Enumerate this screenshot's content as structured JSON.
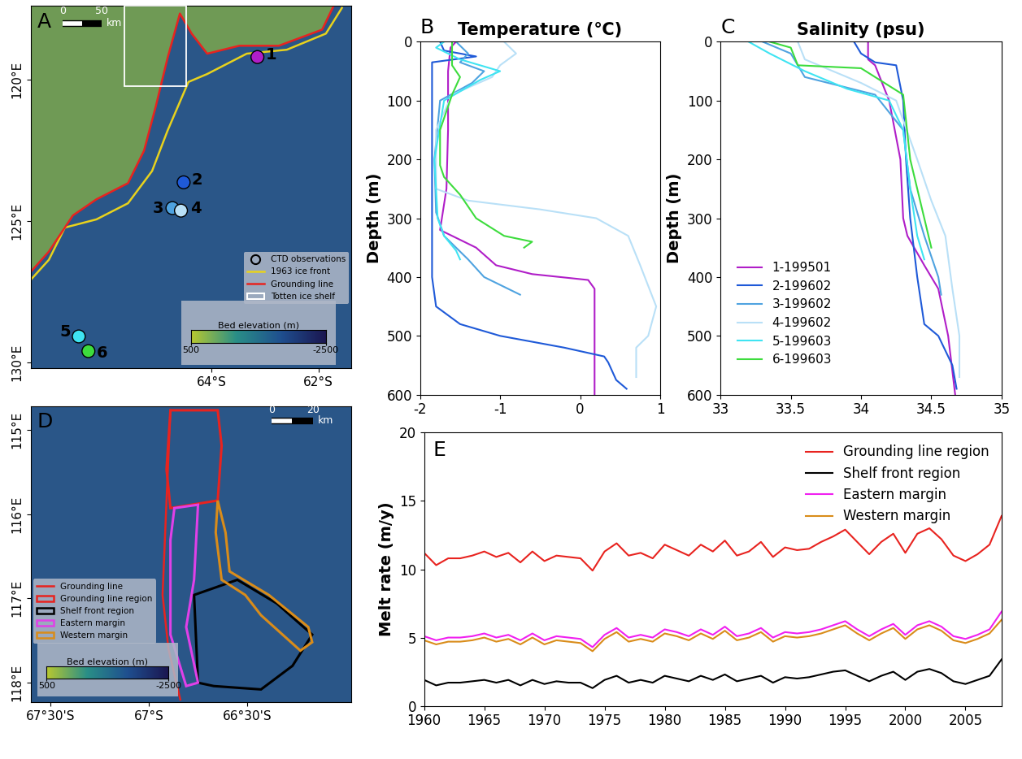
{
  "chart_data": [
    {
      "type": "map",
      "panel_label": "A",
      "xlim": [
        -67.38,
        -61.38
      ],
      "xticks": [
        {
          "value": -64,
          "label": "64°S"
        },
        {
          "value": -62,
          "label": "62°S"
        }
      ],
      "ylim": [
        130.2,
        117.37
      ],
      "yticks": [
        {
          "value": 120,
          "label": "120°E"
        },
        {
          "value": 125,
          "label": "125°E"
        },
        {
          "value": 130,
          "label": "130°E"
        }
      ],
      "legend": "lower right",
      "series": [
        {
          "name": "CTD observations",
          "type": "scatter",
          "marker": "circle",
          "x": [
            -63.14,
            -64.52,
            -64.73,
            -64.57,
            -66.48,
            -66.3
          ],
          "y": [
            119.2,
            123.63,
            124.54,
            124.63,
            129.08,
            129.6
          ],
          "colors": [
            "#b01ec8",
            "#1f5ad8",
            "#4fa3e0",
            "#b9e0f7",
            "#3fe4f2",
            "#3ddc3d"
          ],
          "point_labels": [
            "1",
            "2",
            "3",
            "4",
            "5",
            "6"
          ]
        },
        {
          "name": "1963 ice front",
          "type": "line",
          "color": "#e8d21d",
          "line_style": "solid",
          "x": [
            -61.56,
            -61.86,
            -62.59,
            -63.34,
            -64.08,
            -64.43,
            -64.82,
            -65.11,
            -65.56,
            -66.15,
            -66.74,
            -67.04,
            -67.38
          ],
          "y": [
            117.46,
            118.37,
            118.94,
            119.08,
            119.8,
            120.08,
            121.8,
            123.23,
            124.37,
            124.94,
            125.23,
            126.37,
            127.08
          ]
        },
        {
          "name": "Grounding line",
          "type": "line",
          "color": "#e8231f",
          "line_style": "solid",
          "x": [
            -61.71,
            -61.93,
            -62.74,
            -63.48,
            -64.08,
            -64.37,
            -64.59,
            -64.82,
            -65.04,
            -65.26,
            -65.56,
            -66.15,
            -66.59,
            -67.04,
            -67.38
          ],
          "y": [
            117.37,
            118.23,
            118.8,
            118.8,
            119.08,
            118.37,
            117.66,
            119.23,
            120.94,
            122.51,
            123.66,
            124.23,
            124.8,
            126.08,
            126.8
          ]
        },
        {
          "name": "Totten ice shelf",
          "type": "box",
          "color": "#ffffff",
          "x": [
            -65.63,
            -64.47
          ],
          "y": [
            117.37,
            120.23
          ]
        }
      ],
      "colorbar": {
        "label": "Bed elevation (m)",
        "range": [
          500,
          -2500
        ],
        "ticks": [
          500,
          -2500
        ]
      },
      "scale_bar": {
        "ticks": [
          0,
          50
        ],
        "unit": "km"
      }
    },
    {
      "type": "line",
      "panel_label": "B",
      "title": "Temperature (℃)",
      "ylabel": "Depth (m)",
      "xlim": [
        -2,
        1
      ],
      "xticks": [
        -2,
        -1,
        0,
        1
      ],
      "ylim": [
        600,
        0
      ],
      "yticks": [
        0,
        100,
        200,
        300,
        400,
        500,
        600
      ],
      "series": [
        {
          "color": "#b01ec8",
          "x": [
            -1.55,
            -1.62,
            -1.65,
            -1.65,
            -1.67,
            -1.75,
            -1.6,
            -1.3,
            -1.05,
            -0.6,
            0.1,
            0.18,
            0.18
          ],
          "y": [
            0,
            10,
            50,
            150,
            250,
            320,
            330,
            350,
            380,
            395,
            405,
            420,
            600
          ]
        },
        {
          "color": "#1f5ad8",
          "x": [
            -1.75,
            -1.7,
            -1.3,
            -1.85,
            -1.85,
            -1.85,
            -1.85,
            -1.8,
            -1.5,
            -1.0,
            -0.2,
            0.3,
            0.35,
            0.4,
            0.45,
            0.58
          ],
          "y": [
            0,
            15,
            25,
            35,
            100,
            300,
            400,
            450,
            480,
            500,
            520,
            535,
            545,
            560,
            575,
            590
          ]
        },
        {
          "color": "#4fa3e0",
          "x": [
            -1.55,
            -1.4,
            -1.5,
            -1.2,
            -1.35,
            -1.75,
            -1.82,
            -1.8,
            -1.7,
            -1.4,
            -1.2,
            -0.9,
            -0.75
          ],
          "y": [
            0,
            20,
            35,
            50,
            70,
            100,
            200,
            290,
            330,
            370,
            400,
            420,
            430
          ]
        },
        {
          "color": "#b9e0f7",
          "x": [
            -0.95,
            -0.8,
            -1.0,
            -1.1,
            -1.6,
            -1.8,
            -1.8,
            -1.4,
            -0.5,
            0.2,
            0.6,
            0.75,
            0.95,
            0.85,
            0.7,
            0.7
          ],
          "y": [
            0,
            20,
            40,
            60,
            90,
            150,
            250,
            270,
            285,
            300,
            330,
            380,
            450,
            500,
            520,
            570
          ]
        },
        {
          "color": "#3fe4f2",
          "x": [
            -1.7,
            -1.8,
            -1.5,
            -1.0,
            -1.25,
            -1.7,
            -1.82,
            -1.78,
            -1.7,
            -1.55,
            -1.5
          ],
          "y": [
            0,
            10,
            30,
            50,
            65,
            100,
            200,
            300,
            330,
            355,
            370
          ]
        },
        {
          "color": "#3ddc3d",
          "x": [
            -1.6,
            -1.6,
            -1.6,
            -1.5,
            -1.6,
            -1.75,
            -1.75,
            -1.7,
            -1.5,
            -1.3,
            -0.95,
            -0.6,
            -0.7
          ],
          "y": [
            0,
            10,
            40,
            60,
            90,
            150,
            210,
            230,
            260,
            300,
            330,
            340,
            350
          ]
        }
      ]
    },
    {
      "type": "line",
      "panel_label": "C",
      "title": "Salinity (psu)",
      "ylabel": "Depth (m)",
      "xlim": [
        33,
        35
      ],
      "xticks": [
        33,
        33.5,
        34,
        34.5,
        35
      ],
      "ylim": [
        600,
        0
      ],
      "yticks": [
        0,
        100,
        200,
        300,
        400,
        500,
        600
      ],
      "legend": "lower left",
      "series": [
        {
          "name": "1-199501",
          "color": "#b01ec8",
          "x": [
            34.05,
            34.05,
            34.1,
            34.2,
            34.28,
            34.3,
            34.33,
            34.45,
            34.55,
            34.62,
            34.67
          ],
          "y": [
            0,
            30,
            40,
            100,
            200,
            300,
            330,
            380,
            420,
            500,
            600
          ]
        },
        {
          "name": "2-199602",
          "color": "#1f5ad8",
          "x": [
            33.95,
            34.0,
            34.1,
            34.25,
            34.3,
            34.32,
            34.35,
            34.4,
            34.45,
            34.55,
            34.65,
            34.68
          ],
          "y": [
            0,
            20,
            35,
            40,
            100,
            200,
            300,
            400,
            480,
            500,
            550,
            590
          ]
        },
        {
          "name": "3-199602",
          "color": "#4fa3e0",
          "x": [
            33.3,
            33.5,
            33.6,
            34.1,
            34.3,
            34.35,
            34.45,
            34.55,
            34.57
          ],
          "y": [
            0,
            20,
            60,
            90,
            150,
            250,
            330,
            400,
            430
          ]
        },
        {
          "name": "4-199602",
          "color": "#b9e0f7",
          "x": [
            33.55,
            33.6,
            34.0,
            34.25,
            34.4,
            34.5,
            34.6,
            34.65,
            34.7,
            34.7
          ],
          "y": [
            0,
            30,
            70,
            100,
            200,
            270,
            330,
            420,
            500,
            570
          ]
        },
        {
          "name": "5-199603",
          "color": "#3fe4f2",
          "x": [
            33.2,
            33.35,
            33.6,
            33.9,
            34.2,
            34.3,
            34.35,
            34.4,
            34.45
          ],
          "y": [
            0,
            20,
            50,
            80,
            100,
            150,
            250,
            330,
            370
          ]
        },
        {
          "name": "6-199603",
          "color": "#3ddc3d",
          "x": [
            33.35,
            33.5,
            33.55,
            34.0,
            34.3,
            34.35,
            34.45,
            34.5
          ],
          "y": [
            0,
            10,
            40,
            45,
            90,
            200,
            300,
            350
          ]
        }
      ]
    },
    {
      "type": "map",
      "panel_label": "D",
      "xlim": [
        -67.6,
        -65.97
      ],
      "xticks": [
        {
          "value": -67.5,
          "label": "67°30'S"
        },
        {
          "value": -67,
          "label": "67°S"
        },
        {
          "value": -66.5,
          "label": "66°30'S"
        }
      ],
      "ylim": [
        118.23,
        114.72
      ],
      "yticks": [
        {
          "value": 115,
          "label": "115°E"
        },
        {
          "value": 116,
          "label": "116°E"
        },
        {
          "value": 117,
          "label": "117°E"
        },
        {
          "value": 118,
          "label": "118°E"
        }
      ],
      "legend": "lower left",
      "series": [
        {
          "name": "Grounding line",
          "type": "line",
          "color": "#e8231f",
          "line_style": "solid",
          "x": [
            -66.89,
            -66.91,
            -66.93,
            -66.9,
            -66.84
          ],
          "y": [
            114.77,
            115.84,
            116.96,
            117.6,
            118.2
          ]
        },
        {
          "name": "Grounding line region",
          "type": "polygon",
          "color": "#e8231f",
          "x": [
            -66.89,
            -66.65,
            -66.63,
            -66.65,
            -66.89,
            -66.91
          ],
          "y": [
            114.77,
            114.77,
            115.19,
            115.84,
            115.93,
            115.47
          ]
        },
        {
          "name": "Shelf front region",
          "type": "polygon",
          "color": "#000000",
          "x": [
            -66.77,
            -66.55,
            -66.35,
            -66.17,
            -66.27,
            -66.43,
            -66.67,
            -66.75
          ],
          "y": [
            116.96,
            116.78,
            117.06,
            117.43,
            117.8,
            118.08,
            118.04,
            118.0
          ]
        },
        {
          "name": "Eastern margin",
          "type": "polygon",
          "color": "#e040e8",
          "x": [
            -66.87,
            -66.75,
            -66.77,
            -66.81,
            -66.75,
            -66.81,
            -66.89,
            -66.89
          ],
          "y": [
            115.93,
            115.89,
            116.78,
            117.34,
            118.0,
            118.04,
            117.43,
            116.31
          ]
        },
        {
          "name": "Western margin",
          "type": "polygon",
          "color": "#d98c1a",
          "x": [
            -66.65,
            -66.61,
            -66.59,
            -66.39,
            -66.19,
            -66.17,
            -66.23,
            -66.43,
            -66.51,
            -66.63,
            -66.66
          ],
          "y": [
            115.84,
            116.22,
            116.68,
            116.96,
            117.34,
            117.52,
            117.62,
            117.2,
            116.96,
            116.78,
            116.22
          ]
        }
      ],
      "colorbar": {
        "label": "Bed elevation (m)",
        "range": [
          500,
          -2500
        ],
        "ticks": [
          500,
          -2500
        ]
      },
      "scale_bar": {
        "ticks": [
          0,
          20
        ],
        "unit": "km"
      }
    },
    {
      "type": "line",
      "panel_label": "E",
      "ylabel": "Melt rate (m/y)",
      "xlim": [
        1960,
        2008
      ],
      "xticks": [
        1960,
        1965,
        1970,
        1975,
        1980,
        1985,
        1990,
        1995,
        2000,
        2005
      ],
      "ylim": [
        0,
        20
      ],
      "yticks": [
        0,
        5,
        10,
        15,
        20
      ],
      "legend": "upper right",
      "x": [
        1960,
        1961,
        1962,
        1963,
        1964,
        1965,
        1966,
        1967,
        1968,
        1969,
        1970,
        1971,
        1972,
        1973,
        1974,
        1975,
        1976,
        1977,
        1978,
        1979,
        1980,
        1981,
        1982,
        1983,
        1984,
        1985,
        1986,
        1987,
        1988,
        1989,
        1990,
        1991,
        1992,
        1993,
        1994,
        1995,
        1996,
        1997,
        1998,
        1999,
        2000,
        2001,
        2002,
        2003,
        2004,
        2005,
        2006,
        2007,
        2008
      ],
      "series": [
        {
          "name": "Grounding line region",
          "color": "#e8231f",
          "values": [
            11.2,
            10.3,
            10.8,
            10.8,
            11.0,
            11.3,
            10.9,
            11.2,
            10.5,
            11.3,
            10.6,
            11.0,
            10.9,
            10.8,
            9.9,
            11.3,
            11.9,
            11.0,
            11.2,
            10.8,
            11.8,
            11.4,
            11.0,
            11.8,
            11.3,
            12.1,
            11.0,
            11.3,
            12.0,
            10.9,
            11.6,
            11.4,
            11.5,
            12.0,
            12.4,
            12.9,
            12.0,
            11.1,
            12.0,
            12.6,
            11.2,
            12.6,
            13.0,
            12.2,
            11.0,
            10.6,
            11.1,
            11.8,
            13.9
          ]
        },
        {
          "name": "Shelf front region",
          "color": "#000000",
          "values": [
            1.9,
            1.5,
            1.7,
            1.7,
            1.8,
            1.9,
            1.7,
            1.9,
            1.5,
            1.9,
            1.6,
            1.8,
            1.7,
            1.7,
            1.3,
            1.9,
            2.2,
            1.7,
            1.9,
            1.7,
            2.2,
            2.0,
            1.8,
            2.2,
            1.9,
            2.3,
            1.8,
            2.0,
            2.2,
            1.7,
            2.1,
            2.0,
            2.1,
            2.3,
            2.5,
            2.6,
            2.2,
            1.8,
            2.2,
            2.5,
            1.9,
            2.5,
            2.7,
            2.4,
            1.8,
            1.6,
            1.9,
            2.2,
            3.4
          ]
        },
        {
          "name": "Eastern margin",
          "color": "#f020f0",
          "values": [
            5.1,
            4.8,
            5.0,
            5.0,
            5.1,
            5.3,
            5.0,
            5.2,
            4.8,
            5.3,
            4.8,
            5.1,
            5.0,
            4.9,
            4.3,
            5.2,
            5.7,
            5.0,
            5.2,
            5.0,
            5.6,
            5.4,
            5.1,
            5.6,
            5.2,
            5.8,
            5.1,
            5.3,
            5.7,
            5.0,
            5.4,
            5.3,
            5.4,
            5.6,
            5.9,
            6.2,
            5.6,
            5.1,
            5.6,
            6.0,
            5.2,
            5.9,
            6.2,
            5.8,
            5.1,
            4.9,
            5.2,
            5.6,
            6.9
          ]
        },
        {
          "name": "Western margin",
          "color": "#d98c1a",
          "values": [
            4.8,
            4.5,
            4.7,
            4.7,
            4.8,
            5.0,
            4.7,
            4.9,
            4.5,
            5.0,
            4.5,
            4.8,
            4.7,
            4.6,
            4.0,
            4.9,
            5.4,
            4.7,
            4.9,
            4.7,
            5.3,
            5.1,
            4.8,
            5.3,
            4.9,
            5.5,
            4.8,
            5.0,
            5.4,
            4.7,
            5.1,
            5.0,
            5.1,
            5.3,
            5.6,
            5.9,
            5.3,
            4.8,
            5.3,
            5.7,
            4.9,
            5.6,
            5.9,
            5.5,
            4.8,
            4.6,
            4.9,
            5.3,
            6.3
          ]
        }
      ]
    }
  ]
}
